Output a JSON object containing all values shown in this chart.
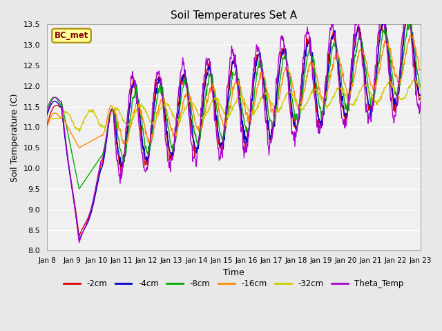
{
  "title": "Soil Temperatures Set A",
  "xlabel": "Time",
  "ylabel": "Soil Temperature (C)",
  "ylim": [
    8.0,
    13.5
  ],
  "yticks": [
    8.0,
    8.5,
    9.0,
    9.5,
    10.0,
    10.5,
    11.0,
    11.5,
    12.0,
    12.5,
    13.0,
    13.5
  ],
  "xtick_labels": [
    "Jan 8",
    "Jan 9",
    "Jan 10",
    "Jan 11",
    "Jan 12",
    "Jan 13",
    "Jan 14",
    "Jan 15",
    "Jan 16",
    "Jan 17",
    "Jan 18",
    "Jan 19",
    "Jan 20",
    "Jan 21",
    "Jan 22",
    "Jan 23"
  ],
  "legend_labels": [
    "-2cm",
    "-4cm",
    "-8cm",
    "-16cm",
    "-32cm",
    "Theta_Temp"
  ],
  "colors": {
    "-2cm": "#dd0000",
    "-4cm": "#0000cc",
    "-8cm": "#00aa00",
    "-16cm": "#ff8800",
    "-32cm": "#cccc00",
    "Theta_Temp": "#aa00cc"
  },
  "annotation_text": "BC_met",
  "annotation_bg": "#ffff99",
  "annotation_border": "#aa8800",
  "annotation_text_color": "#880000",
  "bg_color": "#e8e8e8",
  "plot_bg": "#f0f0f0",
  "figsize": [
    6.4,
    4.8
  ],
  "dpi": 100
}
